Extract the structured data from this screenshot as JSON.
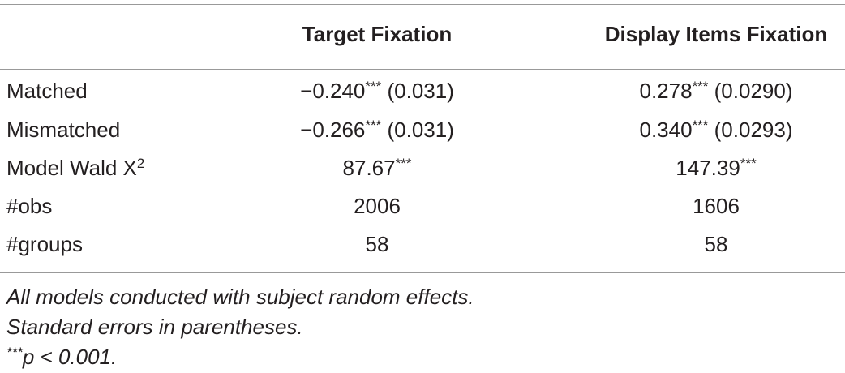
{
  "table": {
    "header": [
      "Target Fixation",
      "Display Items Fixation"
    ],
    "rows": [
      [
        [
          {
            "text": "Matched"
          }
        ],
        [
          {
            "text": "−0.240"
          },
          {
            "sup": "***"
          },
          {
            "text": " (0.031)"
          }
        ],
        [
          {
            "text": "0.278"
          },
          {
            "sup": "***"
          },
          {
            "text": " (0.0290)"
          }
        ]
      ],
      [
        [
          {
            "text": "Mismatched"
          }
        ],
        [
          {
            "text": "−0.266"
          },
          {
            "sup": "***"
          },
          {
            "text": " (0.031)"
          }
        ],
        [
          {
            "text": "0.340"
          },
          {
            "sup": "***"
          },
          {
            "text": " (0.0293)"
          }
        ]
      ],
      [
        [
          {
            "text": "Model Wald X"
          },
          {
            "sup": "2"
          }
        ],
        [
          {
            "text": "87.67"
          },
          {
            "sup": "***"
          }
        ],
        [
          {
            "text": "147.39"
          },
          {
            "sup": "***"
          }
        ]
      ],
      [
        [
          {
            "text": "#obs"
          }
        ],
        [
          {
            "text": "2006"
          }
        ],
        [
          {
            "text": "1606"
          }
        ]
      ],
      [
        [
          {
            "text": "#groups"
          }
        ],
        [
          {
            "text": "58"
          }
        ],
        [
          {
            "text": "58"
          }
        ]
      ]
    ],
    "notes": [
      [
        {
          "text": "All models conducted with subject random effects."
        }
      ],
      [
        {
          "text": "Standard errors in parentheses."
        }
      ],
      [
        {
          "sup": "***"
        },
        {
          "text": "p < 0.001."
        }
      ]
    ]
  }
}
